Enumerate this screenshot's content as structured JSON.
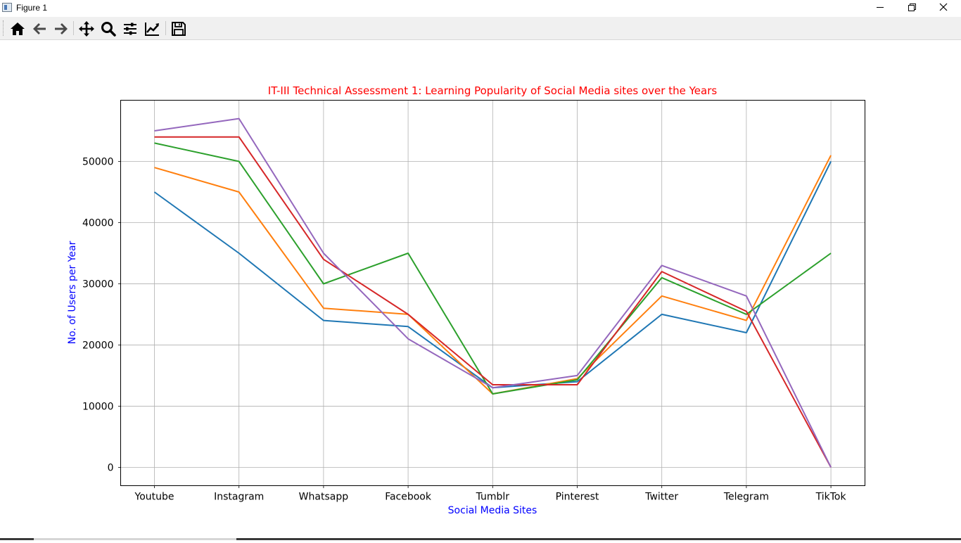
{
  "window": {
    "title": "Figure 1",
    "controls": [
      "minimize",
      "maximize",
      "close"
    ]
  },
  "toolbar": {
    "buttons": [
      {
        "name": "home",
        "icon": "home-icon"
      },
      {
        "name": "back",
        "icon": "arrow-left-icon"
      },
      {
        "name": "forward",
        "icon": "arrow-right-icon"
      },
      {
        "name": "pan",
        "icon": "move-icon"
      },
      {
        "name": "zoom",
        "icon": "magnifier-icon"
      },
      {
        "name": "configure-subplots",
        "icon": "sliders-icon"
      },
      {
        "name": "edit-axis",
        "icon": "line-chart-icon"
      },
      {
        "name": "save",
        "icon": "floppy-disk-icon"
      }
    ]
  },
  "chart_data": {
    "type": "line",
    "title": "IT-III Technical Assessment 1: Learning Popularity of Social Media sites over the Years",
    "xlabel": "Social Media Sites",
    "ylabel": "No. of Users per Year",
    "title_color": "#ff0000",
    "label_color": "#0000ff",
    "categories": [
      "Youtube",
      "Instagram",
      "Whatsapp",
      "Facebook",
      "Tumblr",
      "Pinterest",
      "Twitter",
      "Telegram",
      "TikTok"
    ],
    "ylim": [
      -3000,
      60000
    ],
    "yticks": [
      0,
      10000,
      20000,
      30000,
      40000,
      50000
    ],
    "grid": true,
    "legend": false,
    "series": [
      {
        "color": "#1f77b4",
        "values": [
          45000,
          35000,
          24000,
          23000,
          13000,
          14000,
          25000,
          22000,
          50000
        ]
      },
      {
        "color": "#ff7f0e",
        "values": [
          49000,
          45000,
          26000,
          25000,
          12000,
          14500,
          28000,
          24000,
          51000
        ]
      },
      {
        "color": "#2ca02c",
        "values": [
          53000,
          50000,
          30000,
          35000,
          12000,
          14300,
          31000,
          25000,
          35000
        ]
      },
      {
        "color": "#d62728",
        "values": [
          54000,
          54000,
          34000,
          25000,
          13500,
          13500,
          32000,
          25500,
          0
        ]
      },
      {
        "color": "#9467bd",
        "values": [
          55000,
          57000,
          35000,
          21000,
          13000,
          15000,
          33000,
          28000,
          0
        ]
      }
    ]
  }
}
